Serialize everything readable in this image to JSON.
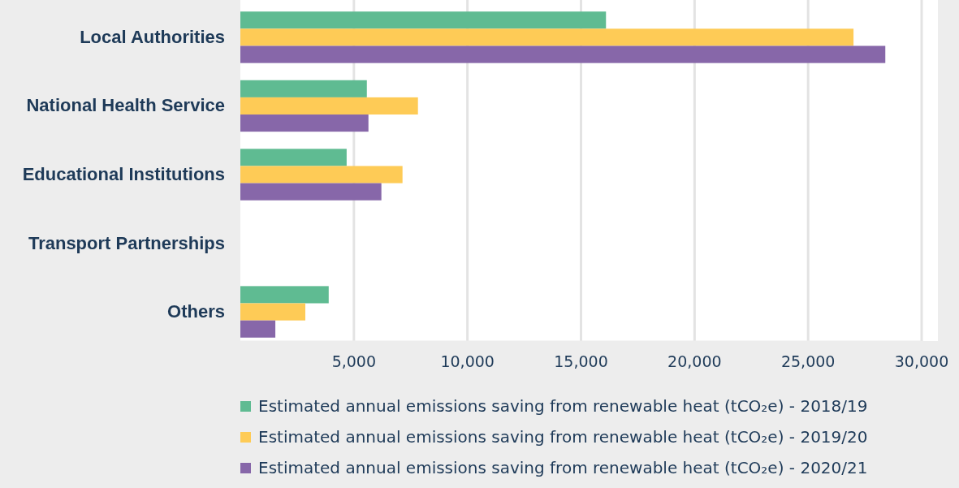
{
  "chart_data": {
    "type": "bar",
    "orientation": "horizontal",
    "categories": [
      "Local Authorities",
      "National Health Service",
      "Educational Institutions",
      "Transport Partnerships",
      "Others"
    ],
    "series": [
      {
        "name": "Estimated annual emissions saving from renewable heat (tCO₂e) - 2018/19",
        "color": "#5fbb92",
        "values": [
          16100,
          5570,
          4680,
          null,
          3890
        ]
      },
      {
        "name": "Estimated annual emissions saving from renewable heat (tCO₂e) - 2019/20",
        "color": "#fecb56",
        "values": [
          27000,
          7820,
          7140,
          null,
          2860
        ]
      },
      {
        "name": "Estimated annual emissions saving from renewable heat (tCO₂e) - 2020/21",
        "color": "#8767a9",
        "values": [
          28400,
          5640,
          6210,
          null,
          1540
        ]
      }
    ],
    "xlim": [
      0,
      30000
    ],
    "xticks": [
      {
        "value": 5000,
        "label": "5,000"
      },
      {
        "value": 10000,
        "label": "10,000"
      },
      {
        "value": 15000,
        "label": "15,000"
      },
      {
        "value": 20000,
        "label": "20,000"
      },
      {
        "value": 25000,
        "label": "25,000"
      },
      {
        "value": 30000,
        "label": "30,000"
      }
    ],
    "grid": "x",
    "legend": "bottom"
  }
}
